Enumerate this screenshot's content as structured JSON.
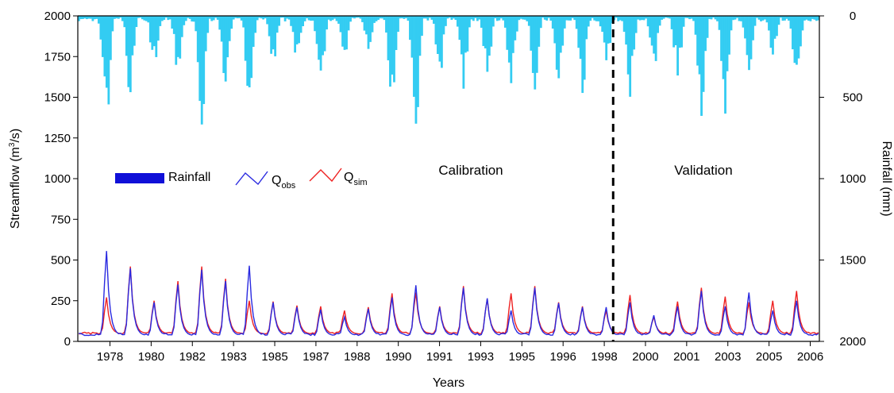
{
  "chart_data": {
    "type": "line",
    "xlabel": "Years",
    "ylabel": "Streamflow (m³/s)",
    "ylabel_html": {
      "main": "Streamflow (m",
      "sup": "3",
      "tail": "/s)"
    },
    "y2label": "Rainfall (mm)",
    "ylim": [
      0,
      2000
    ],
    "y2lim": [
      0,
      2000
    ],
    "y2_inverted": true,
    "yticks": [
      "0",
      "250",
      "500",
      "750",
      "1000",
      "1250",
      "1500",
      "1750",
      "2000"
    ],
    "y2ticks": [
      "0",
      "500",
      "1000",
      "1500",
      "2000"
    ],
    "xticks": [
      "1978",
      "1980",
      "1982",
      "1983",
      "1985",
      "1987",
      "1988",
      "1990",
      "1991",
      "1993",
      "1995",
      "1996",
      "1998",
      "2000",
      "2001",
      "2003",
      "2005",
      "2006"
    ],
    "x_range_months": 374,
    "split_month": 270,
    "period_labels": [
      "Calibration",
      "Validation"
    ],
    "legend": {
      "rainfall": "Rainfall",
      "qobs": {
        "main": "Q",
        "sub": "obs"
      },
      "qsim": {
        "main": "Q",
        "sub": "sim"
      }
    },
    "colors": {
      "rainfall": "#33ccf2",
      "rainfall_legend": "#1010d8",
      "qobs": "#2a2ae0",
      "qsim": "#ee2222",
      "split": "#000000"
    },
    "peaks": [
      {
        "m": 14,
        "obs": 555,
        "sim": 270,
        "rain": 680
      },
      {
        "m": 26,
        "obs": 450,
        "sim": 460,
        "rain": 520
      },
      {
        "m": 38,
        "obs": 240,
        "sim": 250,
        "rain": 320
      },
      {
        "m": 50,
        "obs": 350,
        "sim": 370,
        "rain": 360
      },
      {
        "m": 62,
        "obs": 440,
        "sim": 460,
        "rain": 720
      },
      {
        "m": 74,
        "obs": 370,
        "sim": 385,
        "rain": 440
      },
      {
        "m": 86,
        "obs": 465,
        "sim": 250,
        "rain": 560
      },
      {
        "m": 98,
        "obs": 240,
        "sim": 245,
        "rain": 320
      },
      {
        "m": 110,
        "obs": 210,
        "sim": 220,
        "rain": 290
      },
      {
        "m": 122,
        "obs": 195,
        "sim": 215,
        "rain": 430
      },
      {
        "m": 134,
        "obs": 150,
        "sim": 190,
        "rain": 250
      },
      {
        "m": 146,
        "obs": 200,
        "sim": 210,
        "rain": 230
      },
      {
        "m": 158,
        "obs": 270,
        "sim": 295,
        "rain": 620
      },
      {
        "m": 170,
        "obs": 345,
        "sim": 300,
        "rain": 700
      },
      {
        "m": 182,
        "obs": 210,
        "sim": 215,
        "rain": 380
      },
      {
        "m": 194,
        "obs": 330,
        "sim": 340,
        "rain": 460
      },
      {
        "m": 206,
        "obs": 265,
        "sim": 260,
        "rain": 400
      },
      {
        "m": 218,
        "obs": 190,
        "sim": 295,
        "rain": 430
      },
      {
        "m": 230,
        "obs": 330,
        "sim": 340,
        "rain": 480
      },
      {
        "m": 242,
        "obs": 235,
        "sim": 240,
        "rain": 420
      },
      {
        "m": 254,
        "obs": 210,
        "sim": 215,
        "rain": 480
      },
      {
        "m": 266,
        "obs": 210,
        "sim": 190,
        "rain": 330
      },
      {
        "m": 278,
        "obs": 240,
        "sim": 285,
        "rain": 500
      },
      {
        "m": 290,
        "obs": 160,
        "sim": 150,
        "rain": 330
      },
      {
        "m": 302,
        "obs": 215,
        "sim": 245,
        "rain": 380
      },
      {
        "m": 314,
        "obs": 310,
        "sim": 330,
        "rain": 620
      },
      {
        "m": 326,
        "obs": 215,
        "sim": 275,
        "rain": 670
      },
      {
        "m": 338,
        "obs": 300,
        "sim": 240,
        "rain": 420
      },
      {
        "m": 350,
        "obs": 190,
        "sim": 250,
        "rain": 300
      },
      {
        "m": 362,
        "obs": 250,
        "sim": 310,
        "rain": 540
      }
    ],
    "baseflow_sim": 45,
    "baseflow_obs": 35
  }
}
